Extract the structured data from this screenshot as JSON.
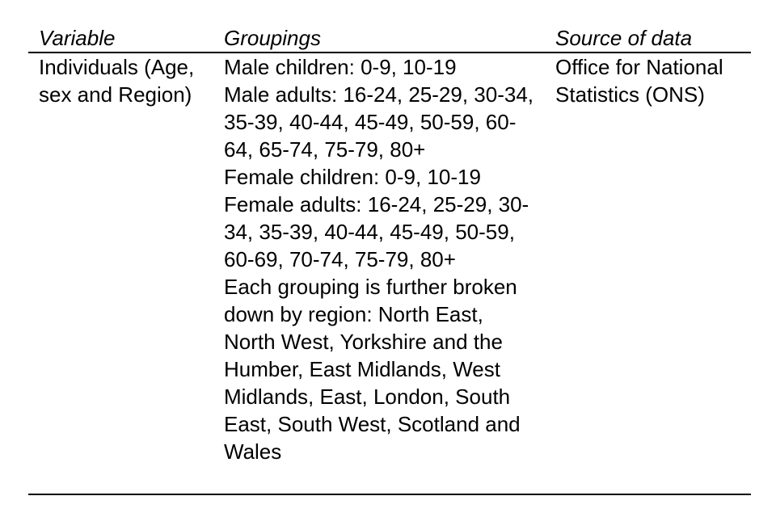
{
  "page": {
    "background_color": "#ffffff",
    "text_color": "#000000",
    "rule_color": "#000000"
  },
  "table": {
    "headers": [
      {
        "label": "Variable"
      },
      {
        "label": "Groupings"
      },
      {
        "label": "Source of data"
      }
    ],
    "row": {
      "variable_lines": [
        "Individuals (Age,",
        "sex and Region)"
      ],
      "variable_text": "Individuals (Age, sex and Region)",
      "groupings_lines": [
        "Male children: 0-9, 10-19",
        "Male adults: 16-24, 25-29, 30-34,",
        "35-39, 40-44, 45-49, 50-59, 60-",
        "64, 65-74, 75-79, 80+",
        "Female children: 0-9, 10-19",
        "Female adults: 16-24, 25-29, 30-",
        "34, 35-39, 40-44, 45-49, 50-59,",
        "60-69, 70-74, 75-79, 80+",
        "Each grouping is further broken",
        "down by region: North East,",
        "North West, Yorkshire and the",
        "Humber, East Midlands, West",
        "Midlands, East, London, South",
        "East, South West, Scotland and",
        "Wales"
      ],
      "groupings_text": "Male children: 0-9, 10-19 | Male adults: 16-24, 25-29, 30-34, 35-39, 40-44, 45-49, 50-59, 60-64, 65-74, 75-79, 80+ | Female children: 0-9, 10-19 | Female adults: 16-24, 25-29, 30-34, 35-39, 40-44, 45-49, 50-59, 60-69, 70-74, 75-79, 80+ | Each grouping is further broken down by region: North East, North West, Yorkshire and the Humber, East Midlands, West Midlands, East, London, South East, South West, Scotland and Wales",
      "source_lines": [
        "Office for National",
        "Statistics (ONS)"
      ],
      "source_text": "Office for National Statistics (ONS)"
    }
  }
}
